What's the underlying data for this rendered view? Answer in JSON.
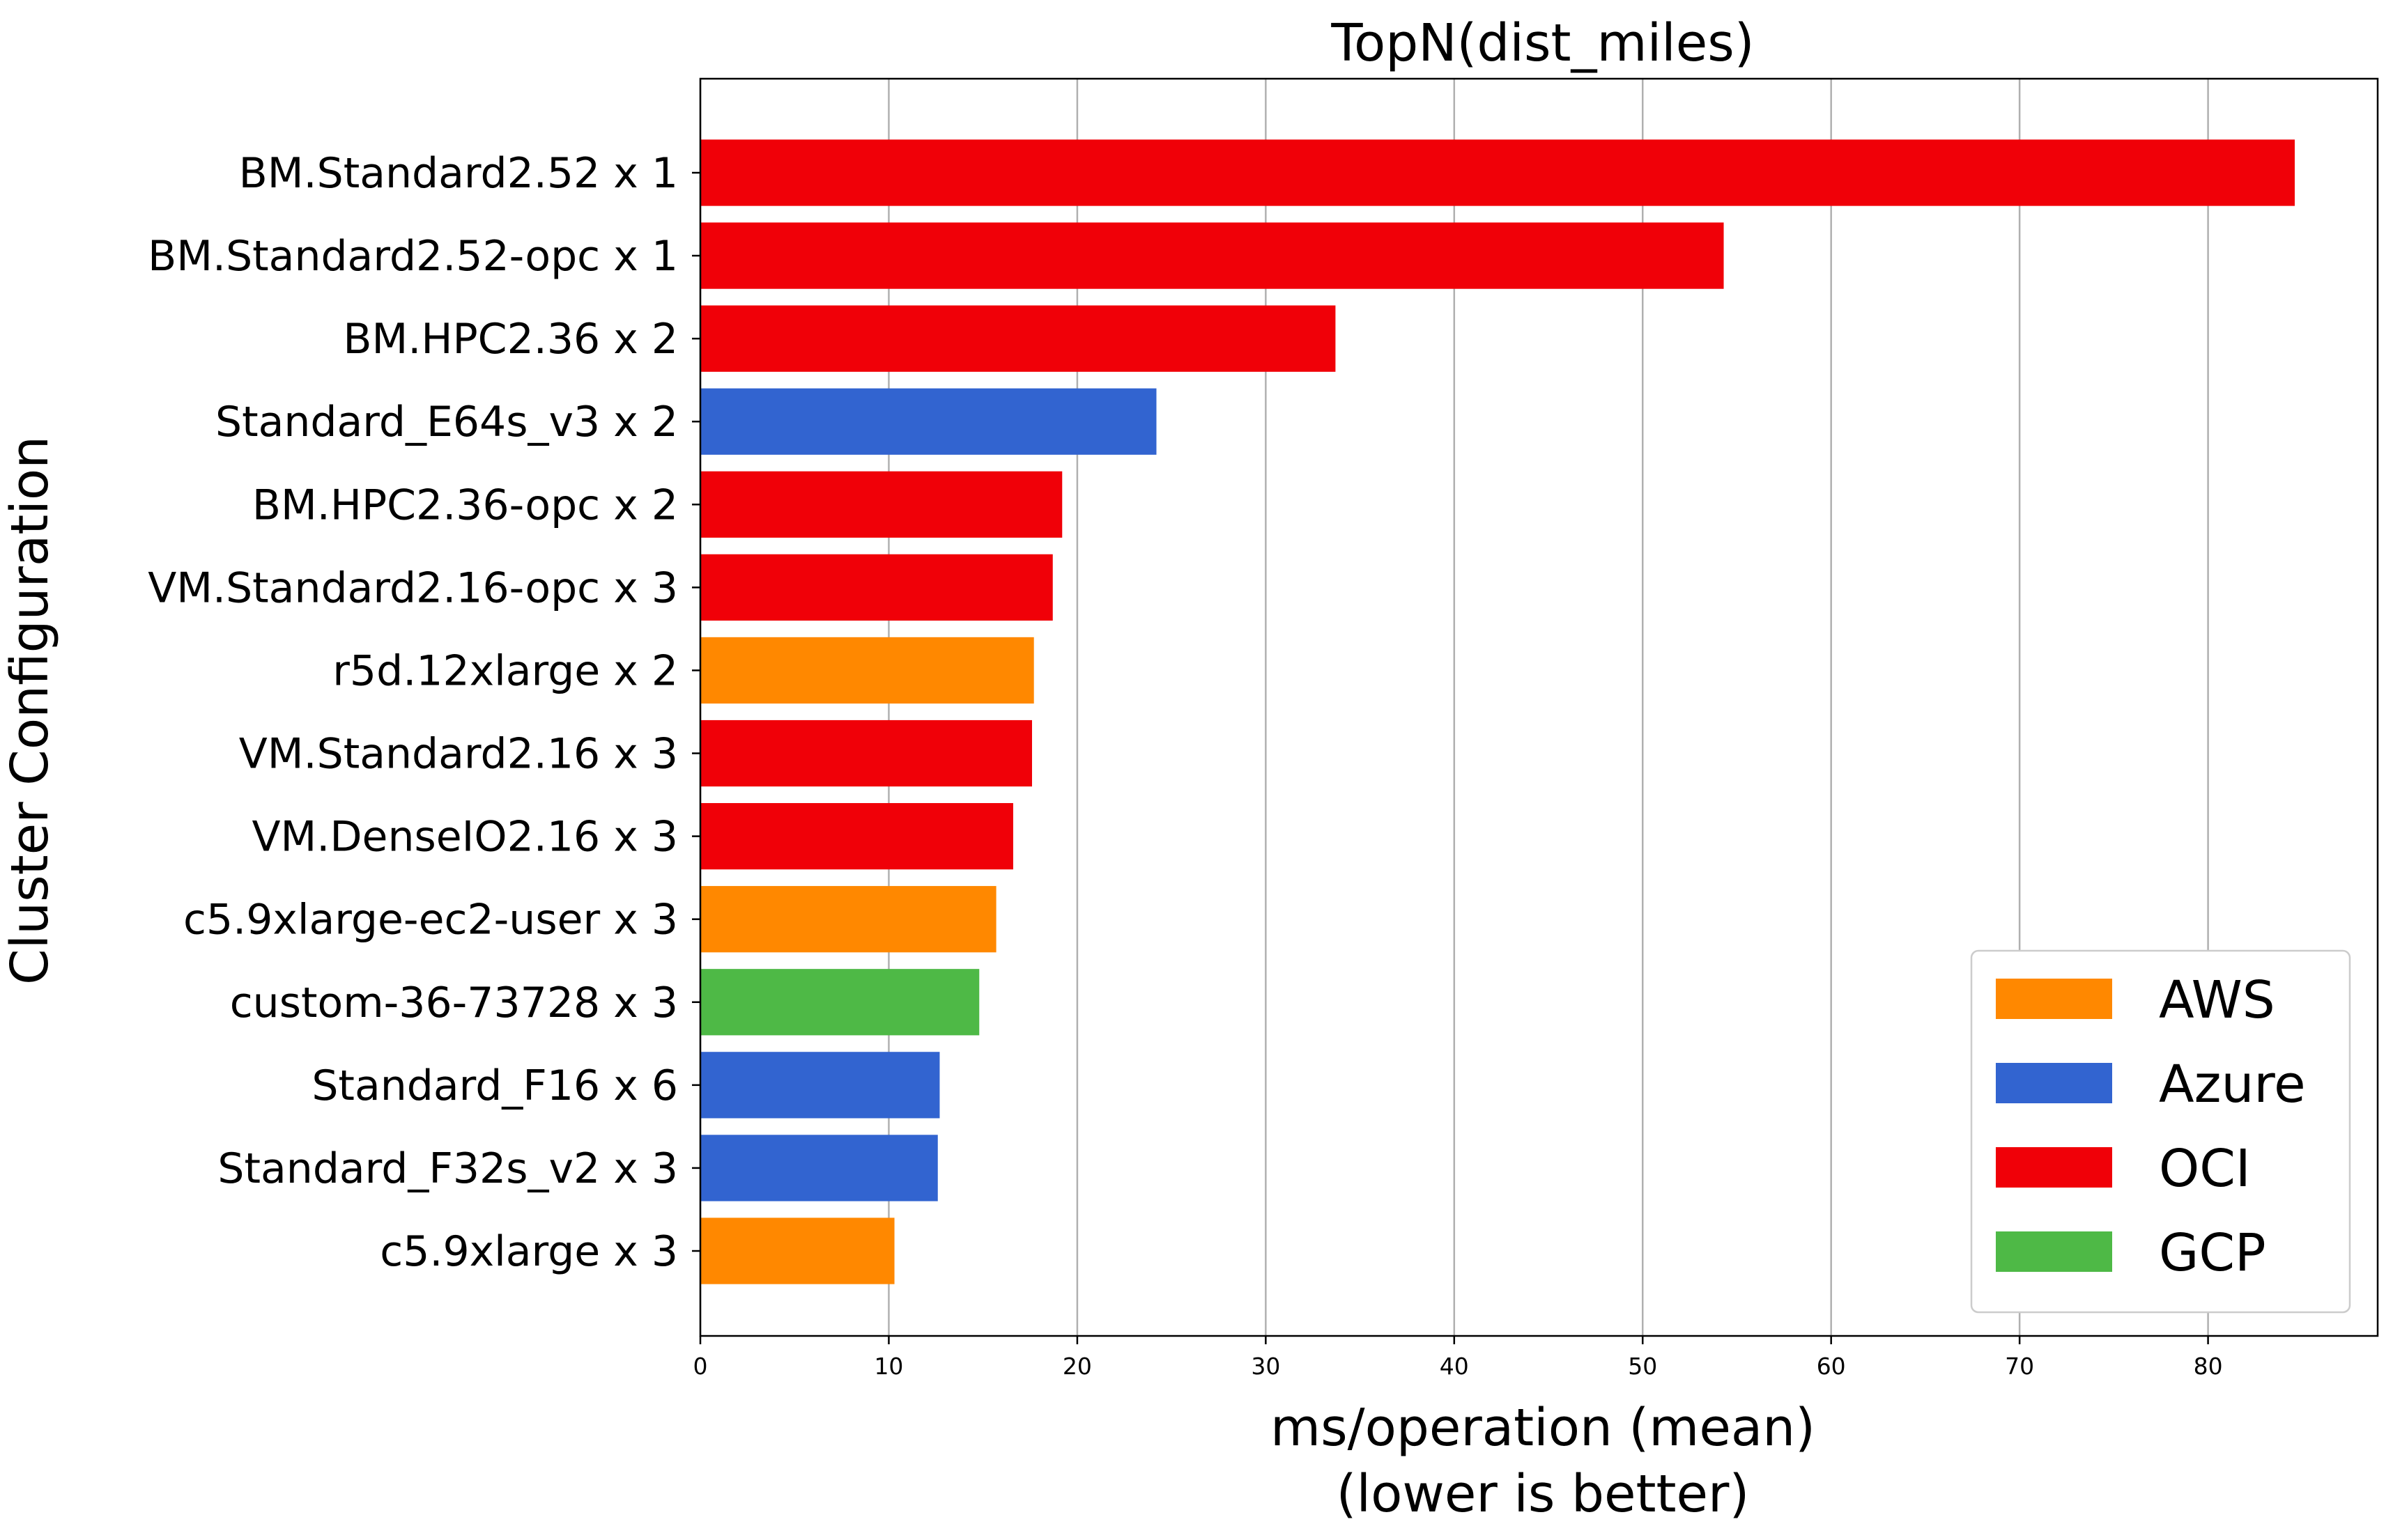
{
  "chart_data": {
    "type": "bar",
    "orientation": "horizontal",
    "title": "TopN(dist_miles)",
    "xlabel": [
      "ms/operation (mean)",
      "(lower is better)"
    ],
    "ylabel": "Cluster Configuration",
    "xlim": [
      0,
      89
    ],
    "xticks": [
      0,
      10,
      20,
      30,
      40,
      50,
      60,
      70,
      80
    ],
    "grid": "vertical",
    "legend_position": "lower-right",
    "colors": {
      "AWS": "#ff8800",
      "Azure": "#3264d0",
      "OCI": "#f00008",
      "GCP": "#4eb946"
    },
    "legend": [
      "AWS",
      "Azure",
      "OCI",
      "GCP"
    ],
    "bars": [
      {
        "label": "BM.Standard2.52 x 1",
        "value": 84.6,
        "provider": "OCI"
      },
      {
        "label": "BM.Standard2.52-opc x 1",
        "value": 54.3,
        "provider": "OCI"
      },
      {
        "label": "BM.HPC2.36 x 2",
        "value": 33.7,
        "provider": "OCI"
      },
      {
        "label": "Standard_E64s_v3 x 2",
        "value": 24.2,
        "provider": "Azure"
      },
      {
        "label": "BM.HPC2.36-opc x 2",
        "value": 19.2,
        "provider": "OCI"
      },
      {
        "label": "VM.Standard2.16-opc x 3",
        "value": 18.7,
        "provider": "OCI"
      },
      {
        "label": "r5d.12xlarge x 2",
        "value": 17.7,
        "provider": "AWS"
      },
      {
        "label": "VM.Standard2.16 x 3",
        "value": 17.6,
        "provider": "OCI"
      },
      {
        "label": "VM.DenseIO2.16 x 3",
        "value": 16.6,
        "provider": "OCI"
      },
      {
        "label": "c5.9xlarge-ec2-user x 3",
        "value": 15.7,
        "provider": "AWS"
      },
      {
        "label": "custom-36-73728 x 3",
        "value": 14.8,
        "provider": "GCP"
      },
      {
        "label": "Standard_F16 x 6",
        "value": 12.7,
        "provider": "Azure"
      },
      {
        "label": "Standard_F32s_v2 x 3",
        "value": 12.6,
        "provider": "Azure"
      },
      {
        "label": "c5.9xlarge x 3",
        "value": 10.3,
        "provider": "AWS"
      }
    ]
  }
}
